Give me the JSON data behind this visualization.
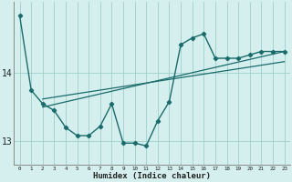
{
  "x": [
    0,
    1,
    2,
    3,
    4,
    5,
    6,
    7,
    8,
    9,
    10,
    11,
    12,
    13,
    14,
    15,
    16,
    17,
    18,
    19,
    20,
    21,
    22,
    23
  ],
  "line_main": [
    14.85,
    13.75,
    13.55,
    13.45,
    13.2,
    13.08,
    13.08,
    13.22,
    13.55,
    12.97,
    12.97,
    12.93,
    13.3,
    13.58,
    14.42,
    14.52,
    14.58,
    14.22,
    14.22,
    14.22,
    14.27,
    14.32,
    14.32,
    14.32
  ],
  "trend1_x": [
    2,
    23
  ],
  "trend1_y": [
    13.62,
    14.17
  ],
  "trend2_x": [
    2,
    23
  ],
  "trend2_y": [
    13.5,
    14.32
  ],
  "bg_color": "#d4efed",
  "line_color": "#1a6b6b",
  "grid_color": "#9ecfcb",
  "xlabel": "Humidex (Indice chaleur)",
  "yticks": [
    13,
    14
  ],
  "ylim": [
    12.65,
    15.05
  ],
  "xlim": [
    -0.5,
    23.5
  ]
}
